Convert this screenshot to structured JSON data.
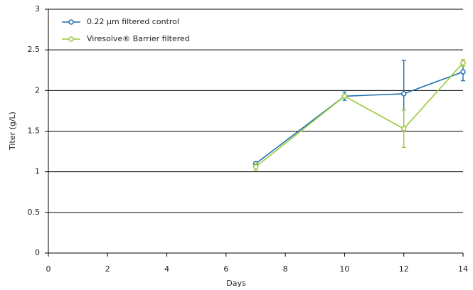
{
  "chart_data": {
    "type": "line",
    "x_label": "Days",
    "y_label": "Titer (g/L)",
    "series": [
      {
        "name": "0.22 µm filtered control",
        "color": "#1f6fb0",
        "x": [
          7,
          10,
          12,
          14
        ],
        "values": [
          1.1,
          1.93,
          1.96,
          2.23
        ],
        "errors": [
          0.01,
          0.05,
          0.41,
          0.11
        ]
      },
      {
        "name": "Viresolve® Barrier filtered",
        "color": "#9bc93f",
        "x": [
          7,
          10,
          12,
          14
        ],
        "values": [
          1.06,
          1.93,
          1.53,
          2.34
        ],
        "errors": [
          0.04,
          0.02,
          0.23,
          0.04
        ]
      }
    ],
    "xlim": [
      0,
      14
    ],
    "xticks": [
      0,
      2,
      4,
      6,
      8,
      10,
      12,
      14
    ],
    "ylim": [
      0,
      3
    ],
    "yticks": [
      0,
      0.5,
      1,
      1.5,
      2,
      2.5,
      3
    ],
    "grid": true,
    "legend": "upper left"
  }
}
